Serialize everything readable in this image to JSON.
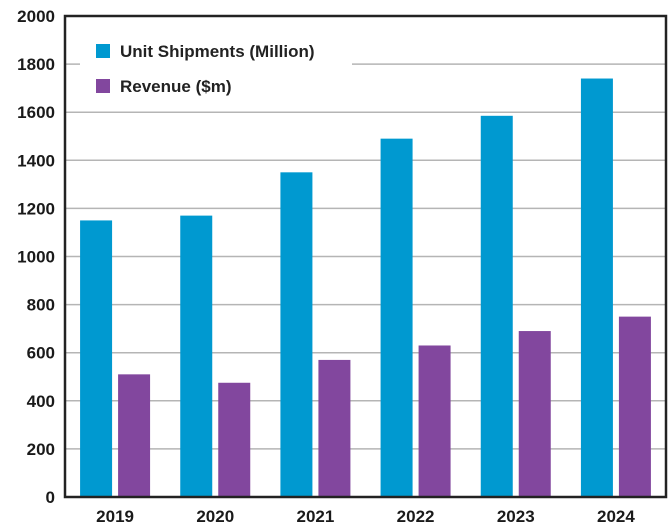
{
  "chart_data": {
    "type": "bar",
    "title": "",
    "xlabel": "",
    "ylabel": "",
    "categories": [
      "2019",
      "2020",
      "2021",
      "2022",
      "2023",
      "2024"
    ],
    "series": [
      {
        "name": "Unit Shipments (Million)",
        "color": "#0099d0",
        "values": [
          1150,
          1170,
          1350,
          1490,
          1585,
          1740
        ]
      },
      {
        "name": "Revenue ($m)",
        "color": "#82479e",
        "values": [
          510,
          475,
          570,
          630,
          690,
          750
        ]
      }
    ],
    "ylim": [
      0,
      2000
    ],
    "yticks": [
      0,
      200,
      400,
      600,
      800,
      1000,
      1200,
      1400,
      1600,
      1800,
      2000
    ],
    "grid": true,
    "legend_position": "top-left"
  }
}
